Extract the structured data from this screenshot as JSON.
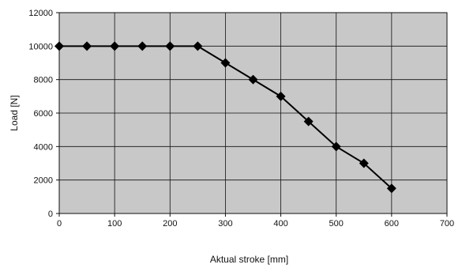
{
  "chart_data": {
    "type": "line",
    "title": "",
    "xlabel": "Aktual stroke [mm]",
    "ylabel": "Load [N]",
    "xlim": [
      0,
      700
    ],
    "ylim": [
      0,
      12000
    ],
    "xticks": [
      0,
      100,
      200,
      300,
      400,
      500,
      600,
      700
    ],
    "yticks": [
      0,
      2000,
      4000,
      6000,
      8000,
      10000,
      12000
    ],
    "grid": true,
    "marker": "diamond",
    "series": [
      {
        "x": [
          0,
          50,
          100,
          150,
          200,
          250,
          300,
          350,
          400,
          450,
          500,
          550,
          600
        ],
        "y": [
          10000,
          10000,
          10000,
          10000,
          10000,
          10000,
          9000,
          8000,
          7000,
          5500,
          4000,
          3000,
          1500
        ]
      }
    ],
    "colors": {
      "plot_background": "#c8c8c8",
      "gridline": "#111111",
      "series": "#000000"
    }
  }
}
